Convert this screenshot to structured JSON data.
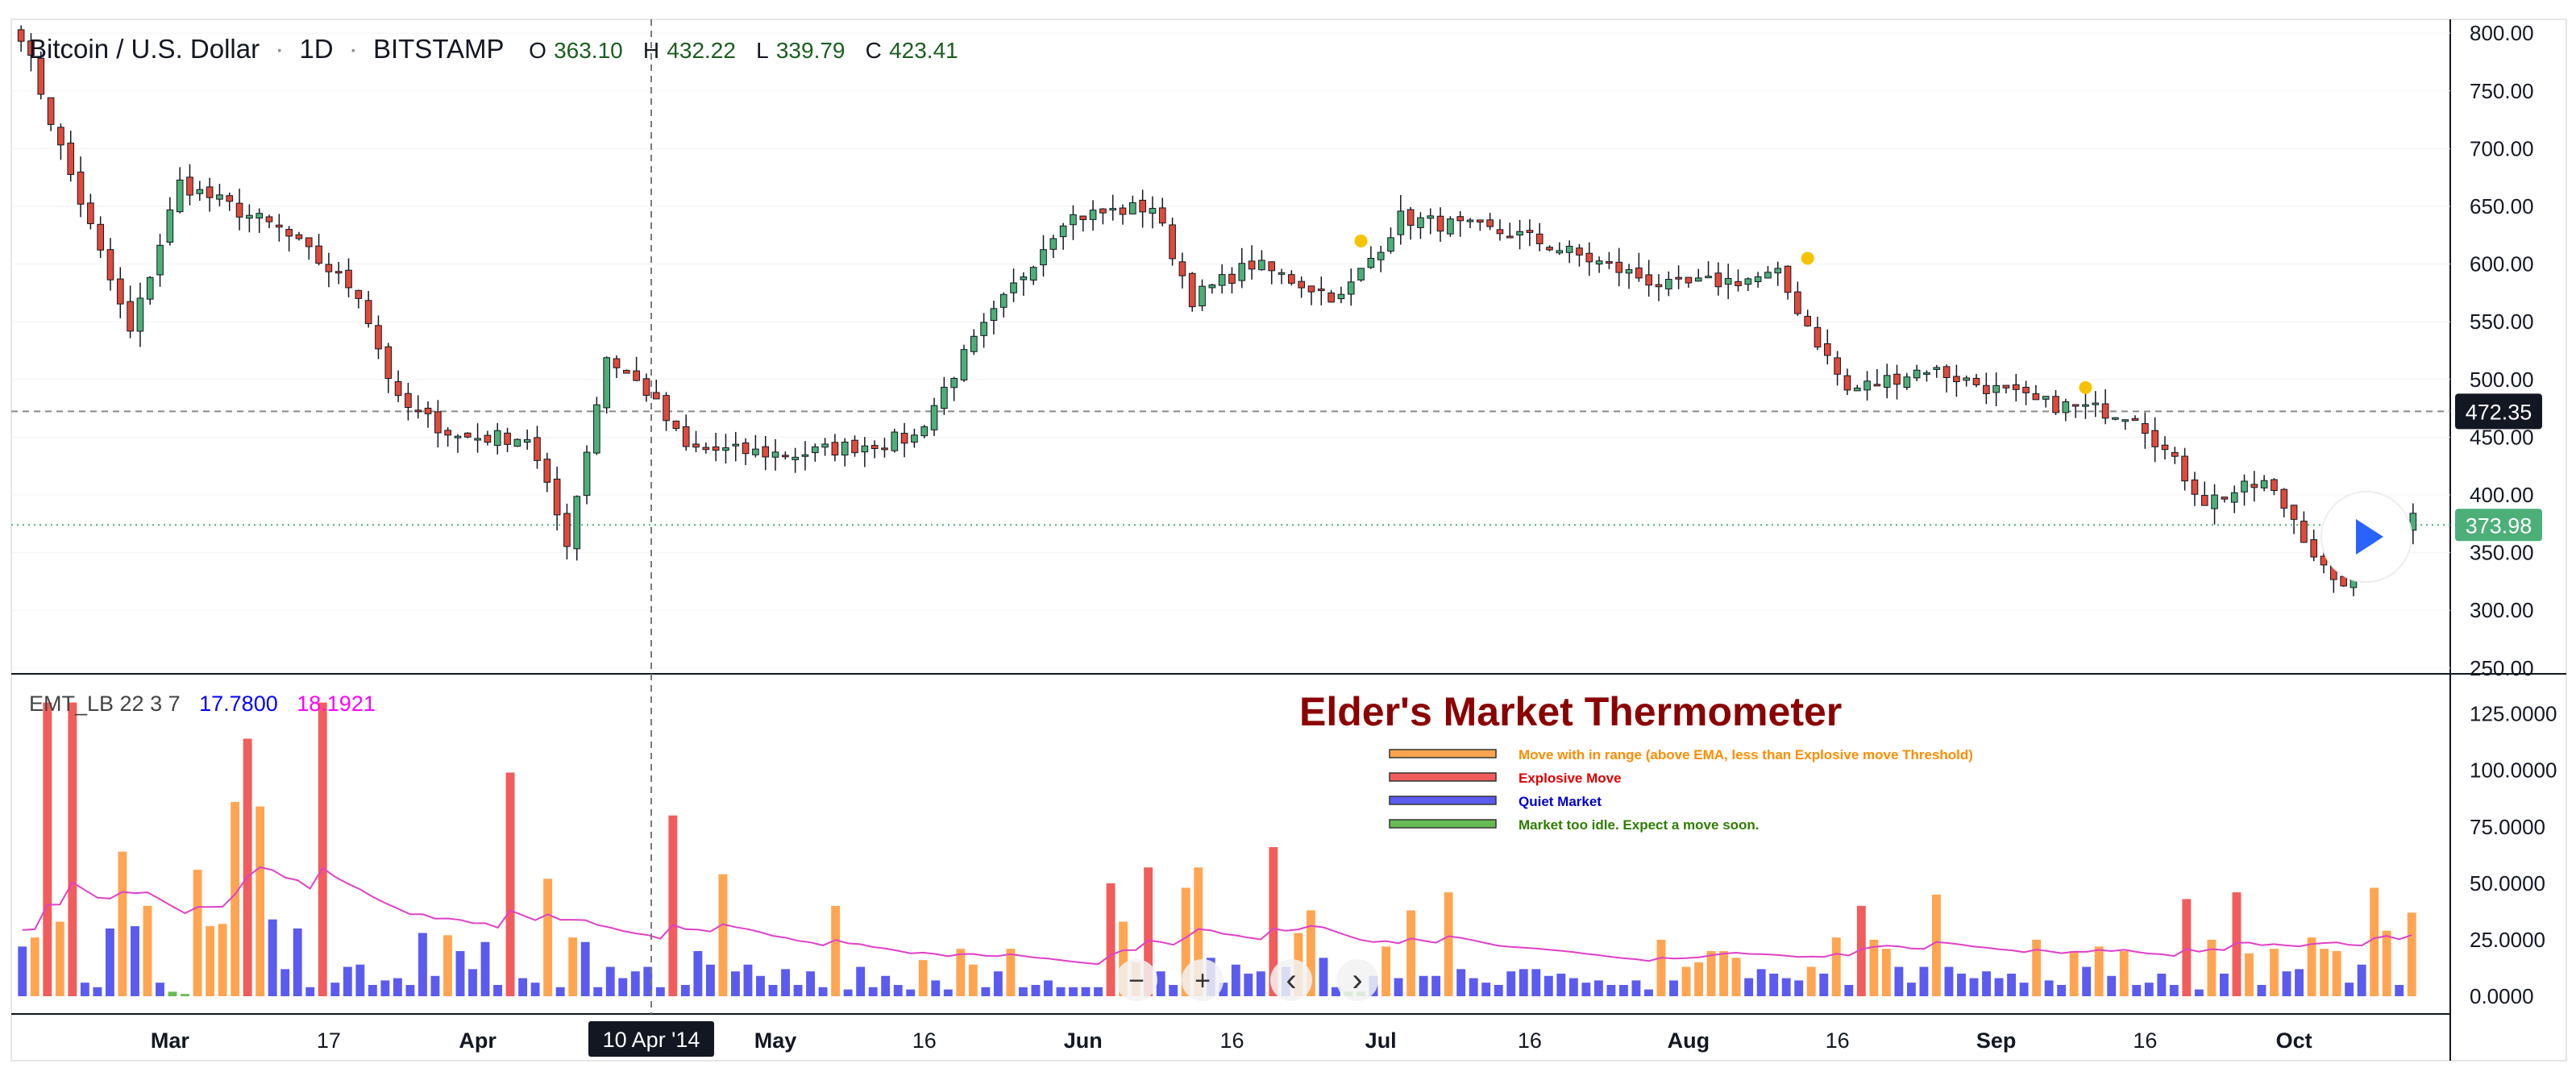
{
  "header": {
    "symbol": "Bitcoin / U.S. Dollar",
    "interval": "1D",
    "exchange": "BITSTAMP",
    "o_label": "O",
    "o_value": "363.10",
    "h_label": "H",
    "h_value": "432.22",
    "l_label": "L",
    "l_value": "339.79",
    "c_label": "C",
    "c_value": "423.41"
  },
  "indicator": {
    "name": "EMT_LB 22 3 7",
    "value_1": "17.7800",
    "value_2": "18.1921",
    "value_1_color": "#0000ff",
    "value_2_color": "#ff00ff"
  },
  "price_labels": {
    "crosshair_price": "472.35",
    "last_price": "373.98",
    "last_price_color": "#4caf78"
  },
  "crosshair_date": "10 Apr '14",
  "legend": {
    "title": "Elder's Market Thermometer",
    "title_color": "#8b0000",
    "items": [
      {
        "label": "Move with in range (above EMA, less than Explosive move Threshold)",
        "color": "#ffa552",
        "text_color": "#ff8c00"
      },
      {
        "label": "Explosive Move",
        "color": "#f25c5c",
        "text_color": "#e00000"
      },
      {
        "label": "Quiet Market",
        "color": "#5b5bf0",
        "text_color": "#0000cc"
      },
      {
        "label": "Market too idle. Expect a move soon.",
        "color": "#66bb55",
        "text_color": "#2e7d00"
      }
    ]
  },
  "controls": {
    "zoom_out": "−",
    "zoom_in": "+",
    "scroll_left": "‹",
    "scroll_right": "›"
  },
  "chart_data": [
    {
      "type": "candlestick",
      "title": "Bitcoin / U.S. Dollar · 1D · BITSTAMP",
      "y_axis": {
        "ticks": [
          800,
          750,
          700,
          650,
          600,
          550,
          500,
          450,
          400,
          350,
          300,
          250
        ],
        "tick_labels": [
          "800.00",
          "750.00",
          "700.00",
          "650.00",
          "600.00",
          "550.00",
          "500.00",
          "450.00",
          "400.00",
          "350.00",
          "300.00",
          "250.00"
        ],
        "range": [
          245,
          812
        ]
      },
      "x_axis": {
        "tick_labels": [
          "Mar",
          "17",
          "Apr",
          "16",
          "May",
          "16",
          "Jun",
          "16",
          "Jul",
          "16",
          "Aug",
          "16",
          "Sep",
          "16",
          "Oct"
        ]
      },
      "horizontal_lines": [
        472.35,
        373.98
      ],
      "anchors": [
        {
          "date": "2014-02-14",
          "close": 800
        },
        {
          "date": "2014-02-18",
          "close": 700
        },
        {
          "date": "2014-02-25",
          "close": 540
        },
        {
          "date": "2014-03-02",
          "close": 670
        },
        {
          "date": "2014-03-12",
          "close": 630
        },
        {
          "date": "2014-03-20",
          "close": 575
        },
        {
          "date": "2014-03-24",
          "close": 480
        },
        {
          "date": "2014-03-30",
          "close": 450
        },
        {
          "date": "2014-04-06",
          "close": 450
        },
        {
          "date": "2014-04-10",
          "close": 360
        },
        {
          "date": "2014-04-14",
          "close": 520
        },
        {
          "date": "2014-04-18",
          "close": 490
        },
        {
          "date": "2014-04-22",
          "close": 440
        },
        {
          "date": "2014-05-03",
          "close": 435
        },
        {
          "date": "2014-05-15",
          "close": 450
        },
        {
          "date": "2014-05-20",
          "close": 520
        },
        {
          "date": "2014-05-30",
          "close": 640
        },
        {
          "date": "2014-06-08",
          "close": 650
        },
        {
          "date": "2014-06-12",
          "close": 570
        },
        {
          "date": "2014-06-18",
          "close": 600
        },
        {
          "date": "2014-06-27",
          "close": 570
        },
        {
          "date": "2014-07-03",
          "close": 640
        },
        {
          "date": "2014-07-15",
          "close": 625
        },
        {
          "date": "2014-07-30",
          "close": 580
        },
        {
          "date": "2014-08-10",
          "close": 590
        },
        {
          "date": "2014-08-17",
          "close": 490
        },
        {
          "date": "2014-08-25",
          "close": 510
        },
        {
          "date": "2014-09-05",
          "close": 480
        },
        {
          "date": "2014-09-15",
          "close": 470
        },
        {
          "date": "2014-09-22",
          "close": 395
        },
        {
          "date": "2014-09-28",
          "close": 410
        },
        {
          "date": "2014-10-01",
          "close": 380
        },
        {
          "date": "2014-10-05",
          "close": 320
        },
        {
          "date": "2014-10-10",
          "close": 350
        },
        {
          "date": "2014-10-13",
          "close": 390
        }
      ],
      "markers": [
        {
          "date": "2014-06-29",
          "value": 620,
          "color": "#f5c400"
        },
        {
          "date": "2014-08-13",
          "value": 605,
          "color": "#f5c400"
        },
        {
          "date": "2014-09-10",
          "value": 493,
          "color": "#f5c400"
        }
      ],
      "bull_color": "#4caf78",
      "bear_color": "#e04a3a"
    },
    {
      "type": "bar",
      "title": "EMT_LB 22 3 7",
      "y_axis": {
        "tick_labels": [
          "125.0000",
          "100.0000",
          "75.0000",
          "50.0000",
          "25.0000",
          "0.0000"
        ],
        "ticks": [
          125,
          100,
          75,
          50,
          25,
          0
        ],
        "range": [
          0,
          132
        ]
      },
      "values": [
        22,
        26,
        130,
        33,
        130,
        6,
        4,
        30,
        64,
        31,
        40,
        6,
        2,
        1,
        56,
        31,
        32,
        86,
        114,
        84,
        34,
        12,
        30,
        4,
        130,
        6,
        13,
        14,
        5,
        7,
        8,
        5,
        28,
        9,
        27,
        20,
        12,
        24,
        5,
        99,
        8,
        6,
        52,
        4,
        26,
        24,
        4,
        13,
        8,
        11,
        13,
        4,
        80,
        5,
        20,
        14,
        54,
        11,
        14,
        9,
        5,
        12,
        5,
        11,
        4,
        40,
        3,
        13,
        4,
        9,
        5,
        3,
        16,
        7,
        3,
        21,
        14,
        4,
        11,
        21,
        4,
        5,
        7,
        4,
        4,
        4,
        4,
        50,
        33,
        15,
        57,
        11,
        5,
        48,
        57,
        17,
        6,
        14,
        10,
        11,
        66,
        13,
        28,
        38,
        17,
        4,
        2,
        2,
        9,
        22,
        8,
        38,
        9,
        9,
        46,
        12,
        8,
        6,
        5,
        11,
        12,
        12,
        9,
        10,
        8,
        6,
        7,
        5,
        5,
        7,
        3,
        25,
        7,
        13,
        15,
        20,
        20,
        17,
        8,
        12,
        10,
        8,
        7,
        13,
        10,
        26,
        5,
        40,
        25,
        21,
        13,
        6,
        13,
        45,
        13,
        10,
        8,
        11,
        8,
        10,
        6,
        25,
        7,
        5,
        20,
        13,
        22,
        9,
        20,
        5,
        6,
        10,
        5,
        43,
        3,
        25,
        10,
        46,
        19,
        5,
        21,
        11,
        12,
        26,
        21,
        20,
        6,
        14,
        48,
        29,
        5,
        37
      ],
      "color_classes": "per-bar: explosive (red), in-range (orange), quiet (blue), idle (green)",
      "ema_series_name": "EMA (pink line)",
      "ema_color": "#e040c8"
    }
  ]
}
